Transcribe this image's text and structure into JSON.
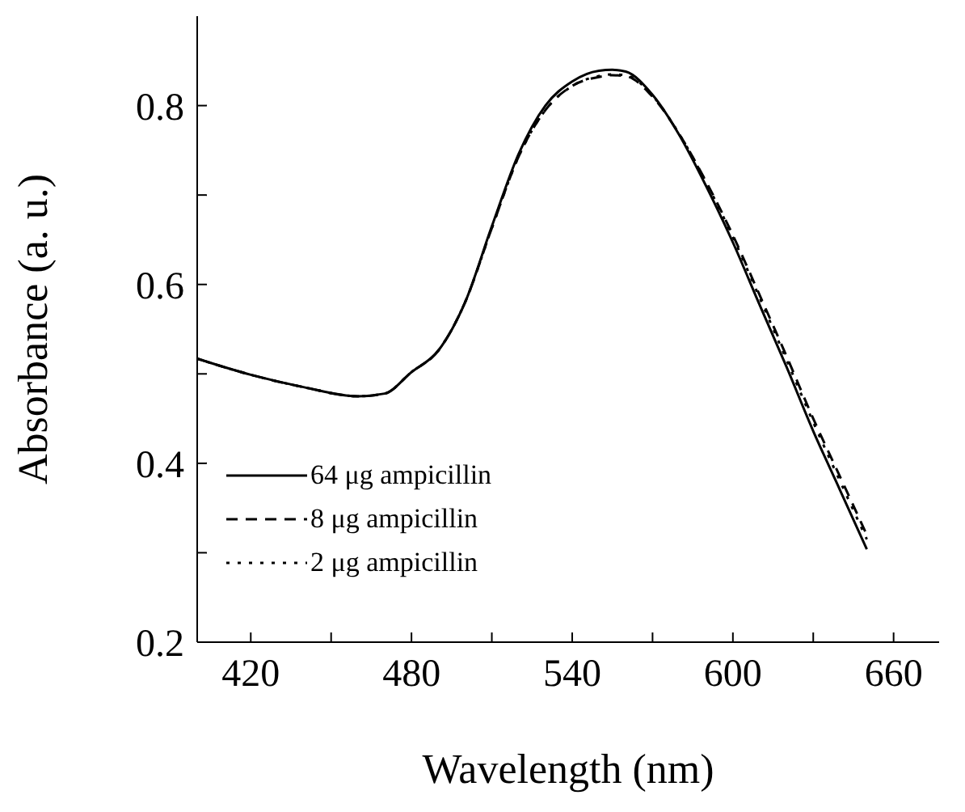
{
  "chart_data": {
    "type": "line",
    "xlabel": "Wavelength (nm)",
    "ylabel": "Absorbance (a. u.)",
    "x": [
      400,
      420,
      440,
      460,
      470,
      480,
      490,
      500,
      510,
      520,
      530,
      540,
      550,
      555,
      560,
      570,
      580,
      590,
      600,
      610,
      620,
      630,
      640,
      650
    ],
    "series": [
      {
        "name": "64 μg ampicillin",
        "color": "#000000",
        "line_style": "solid",
        "values": [
          0.517,
          0.499,
          0.485,
          0.475,
          0.478,
          0.502,
          0.526,
          0.58,
          0.665,
          0.746,
          0.8,
          0.827,
          0.839,
          0.84,
          0.838,
          0.812,
          0.767,
          0.71,
          0.647,
          0.577,
          0.508,
          0.436,
          0.37,
          0.304
        ]
      },
      {
        "name": "8 μg ampicillin",
        "color": "#000000",
        "line_style": "dashed",
        "values": [
          0.517,
          0.499,
          0.485,
          0.475,
          0.478,
          0.502,
          0.526,
          0.58,
          0.663,
          0.743,
          0.795,
          0.822,
          0.832,
          0.834,
          0.833,
          0.81,
          0.768,
          0.715,
          0.655,
          0.588,
          0.52,
          0.45,
          0.385,
          0.32
        ]
      },
      {
        "name": "2 μg ampicillin",
        "color": "#000000",
        "line_style": "dotted",
        "values": [
          0.517,
          0.499,
          0.485,
          0.475,
          0.478,
          0.502,
          0.526,
          0.58,
          0.663,
          0.743,
          0.795,
          0.822,
          0.833,
          0.835,
          0.834,
          0.811,
          0.768,
          0.714,
          0.653,
          0.585,
          0.516,
          0.446,
          0.38,
          0.315
        ]
      }
    ],
    "xlim": [
      400,
      677
    ],
    "xticks": [
      {
        "value": 420,
        "label": "420"
      },
      {
        "value": 450,
        "label": null
      },
      {
        "value": 480,
        "label": "480"
      },
      {
        "value": 510,
        "label": null
      },
      {
        "value": 540,
        "label": "540"
      },
      {
        "value": 570,
        "label": null
      },
      {
        "value": 600,
        "label": "600"
      },
      {
        "value": 630,
        "label": null
      },
      {
        "value": 660,
        "label": "660"
      }
    ],
    "ylim": [
      0.2,
      0.9
    ],
    "yticks": [
      {
        "value": 0.2,
        "label": "0.2"
      },
      {
        "value": 0.3,
        "label": null
      },
      {
        "value": 0.4,
        "label": "0.4"
      },
      {
        "value": 0.5,
        "label": null
      },
      {
        "value": 0.6,
        "label": "0.6"
      },
      {
        "value": 0.7,
        "label": null
      },
      {
        "value": 0.8,
        "label": "0.8"
      }
    ],
    "legend": "bottom left",
    "grid": false,
    "marker": "none"
  }
}
